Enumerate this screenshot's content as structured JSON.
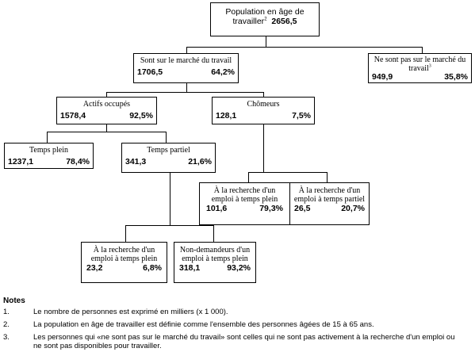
{
  "diagram": {
    "root": {
      "label": "Population en âge de",
      "label2": "travailler",
      "sup": "2",
      "value": "2656,5"
    },
    "on_market": {
      "label": "Sont sur le marché du travail",
      "count": "1706,5",
      "pct": "64,2%"
    },
    "off_market": {
      "label": "Ne sont pas sur le marché du",
      "label2": "travail",
      "sup": "3",
      "count": "949,9",
      "pct": "35,8%"
    },
    "employed": {
      "label": "Actifs occupés",
      "count": "1578,4",
      "pct": "92,5%"
    },
    "unemployed": {
      "label": "Chômeurs",
      "count": "128,1",
      "pct": "7,5%"
    },
    "full_time": {
      "label": "Temps plein",
      "count": "1237,1",
      "pct": "78,4%"
    },
    "part_time": {
      "label": "Temps partiel",
      "count": "341,3",
      "pct": "21,6%"
    },
    "unemp_seek_full": {
      "label": "À la recherche d'un",
      "label2": "emploi à temps plein",
      "count": "101,6",
      "pct": "79,3%"
    },
    "unemp_seek_part": {
      "label": "À la recherche d'un",
      "label2": "emploi à temps partiel",
      "count": "26,5",
      "pct": "20,7%"
    },
    "pt_seek_full": {
      "label": "À la recherche d'un",
      "label2": "emploi à temps plein",
      "count": "23,2",
      "pct": "6,8%"
    },
    "pt_not_seeking": {
      "label": "Non-demandeurs d'un",
      "label2": "emploi à temps plein",
      "count": "318,1",
      "pct": "93,2%"
    }
  },
  "notes": {
    "heading": "Notes",
    "items": [
      {
        "num": "1.",
        "text": "Le nombre de personnes est exprimé en milliers (x 1 000)."
      },
      {
        "num": "2.",
        "text": "La population en âge de travailler  est définie comme l'ensemble des personnes âgées de 15 à 65 ans."
      },
      {
        "num": "3.",
        "text": "Les personnes qui «ne sont pas sur le marché du travail» sont celles qui ne sont pas activement à la recherche d'un emploi ou ne sont pas disponibles pour travailler."
      }
    ]
  }
}
